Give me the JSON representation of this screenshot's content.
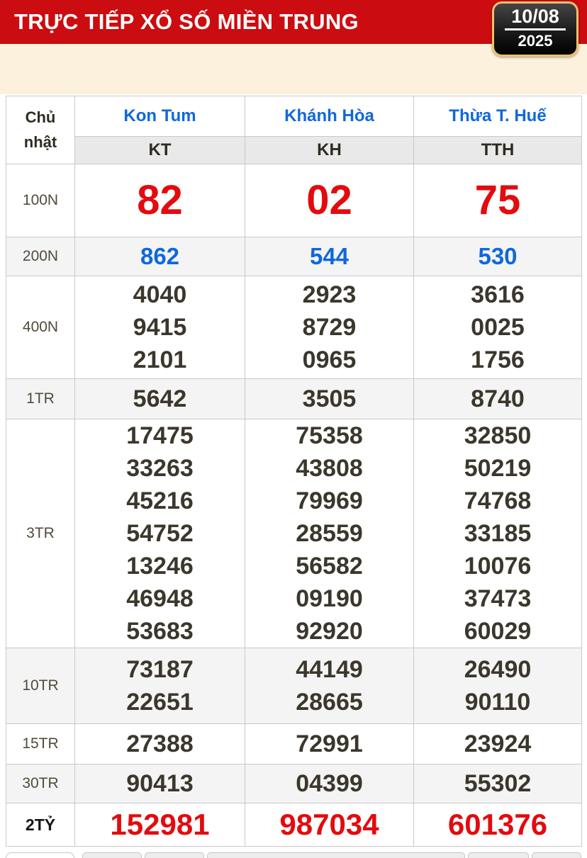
{
  "header": {
    "title": "TRỰC TIẾP XỔ SỐ MIỀN TRUNG",
    "date_day_month": "10/08",
    "date_year": "2025"
  },
  "colors": {
    "header_red": "#cb0c10",
    "prize_highlight_red": "#e30b0e",
    "link_blue": "#0f68db",
    "number_dark": "#3b372c",
    "banner_beige": "#fbf1dc",
    "badge_border_gold": "#eec06c"
  },
  "table": {
    "day_label": "Chủ nhật",
    "provinces": [
      {
        "name": "Kon Tum",
        "code": "KT"
      },
      {
        "name": "Khánh Hòa",
        "code": "KH"
      },
      {
        "name": "Thừa T. Huế",
        "code": "TTH"
      }
    ],
    "prize_rows": [
      {
        "key": "100n",
        "label": "100N",
        "style": "red-lg",
        "values": [
          [
            "82"
          ],
          [
            "02"
          ],
          [
            "75"
          ]
        ]
      },
      {
        "key": "200n",
        "label": "200N",
        "style": "blue",
        "values": [
          [
            "862"
          ],
          [
            "544"
          ],
          [
            "530"
          ]
        ]
      },
      {
        "key": "400n",
        "label": "400N",
        "style": "dark",
        "values": [
          [
            "4040",
            "9415",
            "2101"
          ],
          [
            "2923",
            "8729",
            "0965"
          ],
          [
            "3616",
            "0025",
            "1756"
          ]
        ]
      },
      {
        "key": "1tr",
        "label": "1TR",
        "style": "dark",
        "values": [
          [
            "5642"
          ],
          [
            "3505"
          ],
          [
            "8740"
          ]
        ]
      },
      {
        "key": "3tr",
        "label": "3TR",
        "style": "dark",
        "values": [
          [
            "17475",
            "33263",
            "45216",
            "54752",
            "13246",
            "46948",
            "53683"
          ],
          [
            "75358",
            "43808",
            "79969",
            "28559",
            "56582",
            "09190",
            "92920"
          ],
          [
            "32850",
            "50219",
            "74768",
            "33185",
            "10076",
            "37473",
            "60029"
          ]
        ]
      },
      {
        "key": "10tr",
        "label": "10TR",
        "style": "dark",
        "values": [
          [
            "73187",
            "22651"
          ],
          [
            "44149",
            "28665"
          ],
          [
            "26490",
            "90110"
          ]
        ]
      },
      {
        "key": "15tr",
        "label": "15TR",
        "style": "dark",
        "values": [
          [
            "27388"
          ],
          [
            "72991"
          ],
          [
            "23924"
          ]
        ]
      },
      {
        "key": "30tr",
        "label": "30TR",
        "style": "dark",
        "values": [
          [
            "90413"
          ],
          [
            "04399"
          ],
          [
            "55302"
          ]
        ]
      },
      {
        "key": "2ty",
        "label": "2TỶ",
        "style": "red-md",
        "values": [
          [
            "152981"
          ],
          [
            "987034"
          ],
          [
            "601376"
          ]
        ]
      }
    ]
  }
}
